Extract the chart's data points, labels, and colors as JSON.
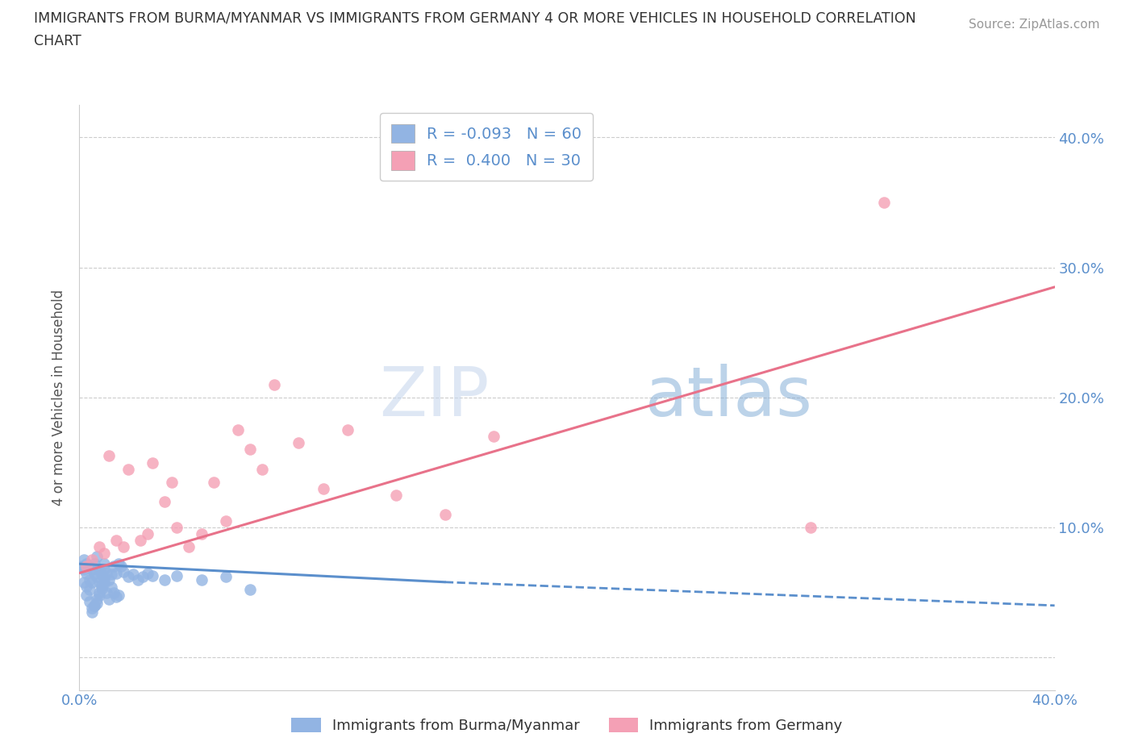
{
  "title_line1": "IMMIGRANTS FROM BURMA/MYANMAR VS IMMIGRANTS FROM GERMANY 4 OR MORE VEHICLES IN HOUSEHOLD CORRELATION",
  "title_line2": "CHART",
  "source": "Source: ZipAtlas.com",
  "ylabel": "4 or more Vehicles in Household",
  "color_blue": "#92b4e3",
  "color_pink": "#f4a0b5",
  "color_blue_line": "#5b8fcc",
  "color_pink_line": "#e8728a",
  "watermark_zip": "ZIP",
  "watermark_atlas": "atlas",
  "R_blue": -0.093,
  "N_blue": 60,
  "R_pink": 0.4,
  "N_pink": 30,
  "x_min": 0.0,
  "x_max": 0.4,
  "y_min": -0.025,
  "y_max": 0.425,
  "blue_x": [
    0.001,
    0.002,
    0.002,
    0.003,
    0.003,
    0.004,
    0.004,
    0.005,
    0.005,
    0.006,
    0.006,
    0.007,
    0.007,
    0.008,
    0.008,
    0.009,
    0.01,
    0.01,
    0.011,
    0.012,
    0.013,
    0.014,
    0.015,
    0.016,
    0.017,
    0.018,
    0.02,
    0.022,
    0.024,
    0.026,
    0.028,
    0.03,
    0.035,
    0.04,
    0.05,
    0.06,
    0.07,
    0.003,
    0.004,
    0.005,
    0.006,
    0.007,
    0.008,
    0.009,
    0.01,
    0.011,
    0.013,
    0.015,
    0.002,
    0.003,
    0.004,
    0.005,
    0.006,
    0.007,
    0.008,
    0.009,
    0.01,
    0.012,
    0.014,
    0.016
  ],
  "blue_y": [
    0.07,
    0.075,
    0.068,
    0.072,
    0.065,
    0.07,
    0.06,
    0.068,
    0.058,
    0.065,
    0.072,
    0.078,
    0.062,
    0.068,
    0.058,
    0.064,
    0.072,
    0.068,
    0.065,
    0.06,
    0.064,
    0.07,
    0.065,
    0.072,
    0.07,
    0.066,
    0.062,
    0.064,
    0.06,
    0.062,
    0.065,
    0.063,
    0.06,
    0.063,
    0.06,
    0.062,
    0.052,
    0.048,
    0.043,
    0.038,
    0.04,
    0.045,
    0.05,
    0.053,
    0.057,
    0.05,
    0.054,
    0.047,
    0.058,
    0.055,
    0.052,
    0.035,
    0.04,
    0.042,
    0.048,
    0.055,
    0.06,
    0.045,
    0.05,
    0.048
  ],
  "pink_x": [
    0.003,
    0.005,
    0.008,
    0.01,
    0.012,
    0.015,
    0.018,
    0.02,
    0.025,
    0.028,
    0.03,
    0.035,
    0.038,
    0.04,
    0.045,
    0.05,
    0.055,
    0.06,
    0.065,
    0.07,
    0.075,
    0.08,
    0.09,
    0.1,
    0.11,
    0.13,
    0.15,
    0.17,
    0.3,
    0.33
  ],
  "pink_y": [
    0.07,
    0.075,
    0.085,
    0.08,
    0.155,
    0.09,
    0.085,
    0.145,
    0.09,
    0.095,
    0.15,
    0.12,
    0.135,
    0.1,
    0.085,
    0.095,
    0.135,
    0.105,
    0.175,
    0.16,
    0.145,
    0.21,
    0.165,
    0.13,
    0.175,
    0.125,
    0.11,
    0.17,
    0.1,
    0.35
  ],
  "blue_line_x_start": 0.0,
  "blue_line_x_solid_end": 0.15,
  "blue_line_x_end": 0.4,
  "blue_line_y_start": 0.072,
  "blue_line_y_solid_end": 0.058,
  "blue_line_y_end": 0.04,
  "pink_line_x_start": 0.0,
  "pink_line_x_end": 0.4,
  "pink_line_y_start": 0.065,
  "pink_line_y_end": 0.285
}
